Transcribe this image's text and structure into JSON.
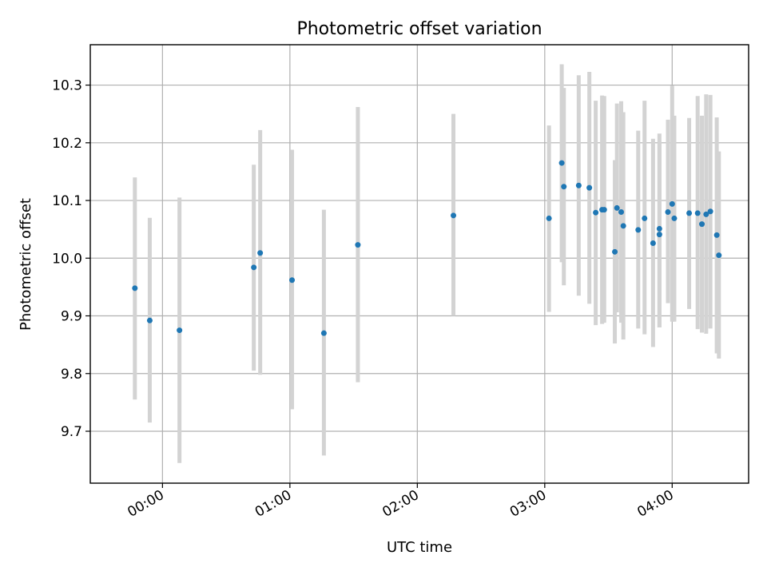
{
  "chart_data": {
    "type": "scatter",
    "title": "Photometric offset variation",
    "xlabel": "UTC time",
    "ylabel": "Photometric offset",
    "xlim": [
      "23:26",
      "04:36"
    ],
    "ylim": [
      9.61,
      10.37
    ],
    "x_ticks": [
      "00:00",
      "01:00",
      "02:00",
      "03:00",
      "04:00"
    ],
    "y_ticks": [
      9.7,
      9.8,
      9.9,
      10.0,
      10.1,
      10.2,
      10.3
    ],
    "grid": true,
    "point_color": "#1f77b4",
    "errorbar_color": "#d3d3d3",
    "points": [
      {
        "x": "23:47",
        "y": 9.948,
        "ylo": 9.755,
        "yhi": 10.14
      },
      {
        "x": "23:54",
        "y": 9.892,
        "ylo": 9.715,
        "yhi": 10.07
      },
      {
        "x": "00:08",
        "y": 9.875,
        "ylo": 9.645,
        "yhi": 10.105
      },
      {
        "x": "00:43",
        "y": 9.984,
        "ylo": 9.805,
        "yhi": 10.162
      },
      {
        "x": "00:46",
        "y": 10.009,
        "ylo": 9.798,
        "yhi": 10.222
      },
      {
        "x": "01:01",
        "y": 9.962,
        "ylo": 9.738,
        "yhi": 10.188
      },
      {
        "x": "01:16",
        "y": 9.87,
        "ylo": 9.658,
        "yhi": 10.084
      },
      {
        "x": "01:32",
        "y": 10.023,
        "ylo": 9.785,
        "yhi": 10.262
      },
      {
        "x": "02:17",
        "y": 10.074,
        "ylo": 9.9,
        "yhi": 10.25
      },
      {
        "x": "03:02",
        "y": 10.069,
        "ylo": 9.907,
        "yhi": 10.23
      },
      {
        "x": "03:08",
        "y": 10.165,
        "ylo": 9.993,
        "yhi": 10.336
      },
      {
        "x": "03:09",
        "y": 10.124,
        "ylo": 9.953,
        "yhi": 10.295
      },
      {
        "x": "03:16",
        "y": 10.126,
        "ylo": 9.935,
        "yhi": 10.317
      },
      {
        "x": "03:21",
        "y": 10.122,
        "ylo": 9.921,
        "yhi": 10.323
      },
      {
        "x": "03:24",
        "y": 10.079,
        "ylo": 9.884,
        "yhi": 10.273
      },
      {
        "x": "03:27",
        "y": 10.084,
        "ylo": 9.886,
        "yhi": 10.282
      },
      {
        "x": "03:28",
        "y": 10.084,
        "ylo": 9.888,
        "yhi": 10.281
      },
      {
        "x": "03:33",
        "y": 10.011,
        "ylo": 9.852,
        "yhi": 10.17
      },
      {
        "x": "03:34",
        "y": 10.087,
        "ylo": 9.906,
        "yhi": 10.268
      },
      {
        "x": "03:36",
        "y": 10.08,
        "ylo": 9.888,
        "yhi": 10.272
      },
      {
        "x": "03:37",
        "y": 10.056,
        "ylo": 9.859,
        "yhi": 10.253
      },
      {
        "x": "03:44",
        "y": 10.049,
        "ylo": 9.878,
        "yhi": 10.221
      },
      {
        "x": "03:47",
        "y": 10.069,
        "ylo": 9.868,
        "yhi": 10.273
      },
      {
        "x": "03:51",
        "y": 10.026,
        "ylo": 9.846,
        "yhi": 10.207
      },
      {
        "x": "03:54",
        "y": 10.051,
        "ylo": 9.88,
        "yhi": 10.216
      },
      {
        "x": "03:54",
        "y": 10.041,
        "ylo": 9.88,
        "yhi": 10.202
      },
      {
        "x": "03:58",
        "y": 10.08,
        "ylo": 9.922,
        "yhi": 10.24
      },
      {
        "x": "04:00",
        "y": 10.094,
        "ylo": 9.89,
        "yhi": 10.299
      },
      {
        "x": "04:01",
        "y": 10.069,
        "ylo": 9.89,
        "yhi": 10.247
      },
      {
        "x": "04:08",
        "y": 10.078,
        "ylo": 9.912,
        "yhi": 10.243
      },
      {
        "x": "04:12",
        "y": 10.078,
        "ylo": 9.877,
        "yhi": 10.281
      },
      {
        "x": "04:14",
        "y": 10.059,
        "ylo": 9.871,
        "yhi": 10.247
      },
      {
        "x": "04:16",
        "y": 10.076,
        "ylo": 9.869,
        "yhi": 10.284
      },
      {
        "x": "04:18",
        "y": 10.081,
        "ylo": 9.878,
        "yhi": 10.283
      },
      {
        "x": "04:21",
        "y": 10.04,
        "ylo": 9.835,
        "yhi": 10.244
      },
      {
        "x": "04:22",
        "y": 10.005,
        "ylo": 9.826,
        "yhi": 10.185
      }
    ]
  }
}
